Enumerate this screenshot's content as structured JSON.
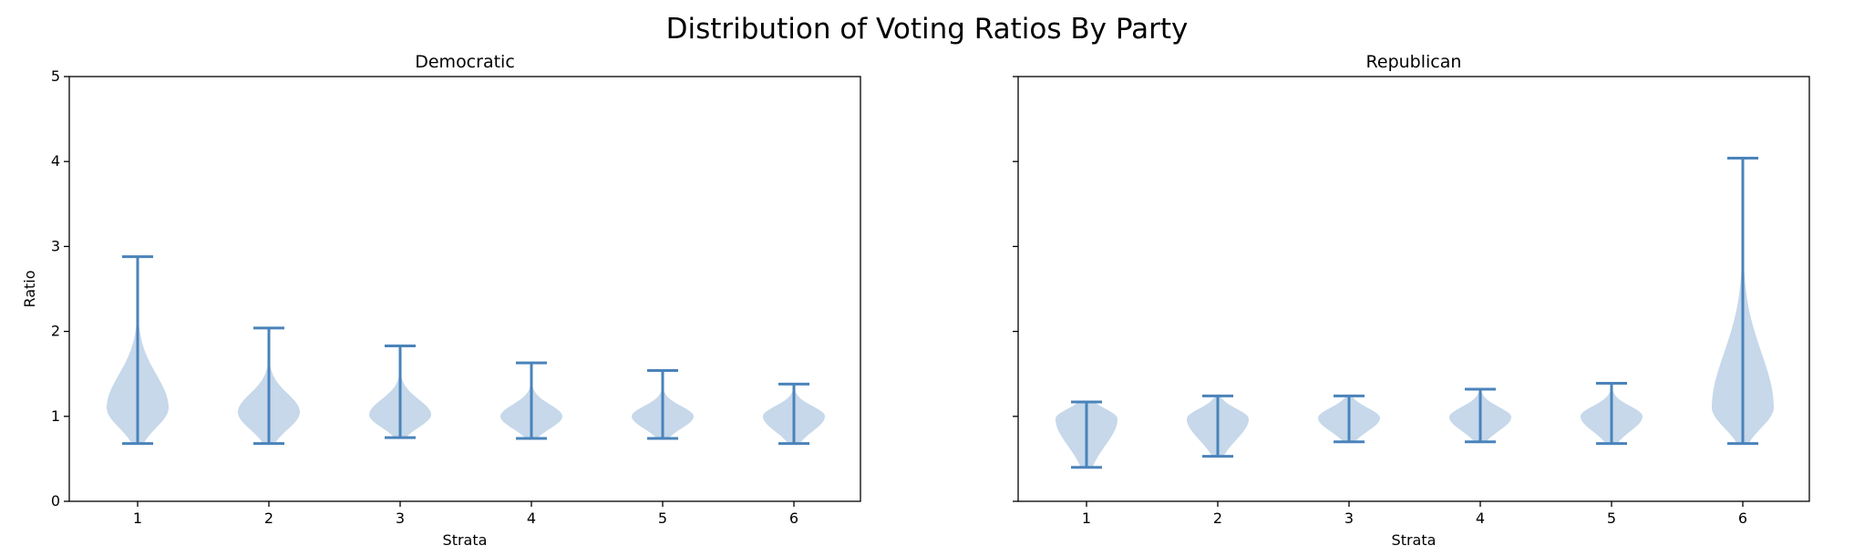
{
  "suptitle": "Distribution of Voting Ratios By Party",
  "colors": {
    "body": "#c6d8ea",
    "line": "#4a83ba",
    "axis": "#000000"
  },
  "chart_data": [
    {
      "type": "violin",
      "title": "Democratic",
      "xlabel": "Strata",
      "ylabel": "Ratio",
      "categories": [
        "1",
        "2",
        "3",
        "4",
        "5",
        "6"
      ],
      "ylim": [
        0,
        5
      ],
      "yticks": [
        "0",
        "1",
        "2",
        "3",
        "4",
        "5"
      ],
      "show_yticklabels": true,
      "violins": [
        {
          "category": "1",
          "min": 0.68,
          "max": 2.88,
          "mode": 1.1
        },
        {
          "category": "2",
          "min": 0.68,
          "max": 2.04,
          "mode": 1.05
        },
        {
          "category": "3",
          "min": 0.75,
          "max": 1.83,
          "mode": 1.02
        },
        {
          "category": "4",
          "min": 0.74,
          "max": 1.63,
          "mode": 1.0
        },
        {
          "category": "5",
          "min": 0.74,
          "max": 1.54,
          "mode": 1.0
        },
        {
          "category": "6",
          "min": 0.68,
          "max": 1.38,
          "mode": 1.0
        }
      ]
    },
    {
      "type": "violin",
      "title": "Republican",
      "xlabel": "Strata",
      "ylabel": "",
      "categories": [
        "1",
        "2",
        "3",
        "4",
        "5",
        "6"
      ],
      "ylim": [
        0,
        5
      ],
      "yticks": [
        "0",
        "1",
        "2",
        "3",
        "4",
        "5"
      ],
      "show_yticklabels": false,
      "violins": [
        {
          "category": "1",
          "min": 0.4,
          "max": 1.17,
          "mode": 0.97
        },
        {
          "category": "2",
          "min": 0.53,
          "max": 1.24,
          "mode": 0.97
        },
        {
          "category": "3",
          "min": 0.7,
          "max": 1.24,
          "mode": 0.98
        },
        {
          "category": "4",
          "min": 0.7,
          "max": 1.32,
          "mode": 0.99
        },
        {
          "category": "5",
          "min": 0.68,
          "max": 1.39,
          "mode": 1.0
        },
        {
          "category": "6",
          "min": 0.68,
          "max": 4.04,
          "mode": 1.1
        }
      ]
    }
  ]
}
